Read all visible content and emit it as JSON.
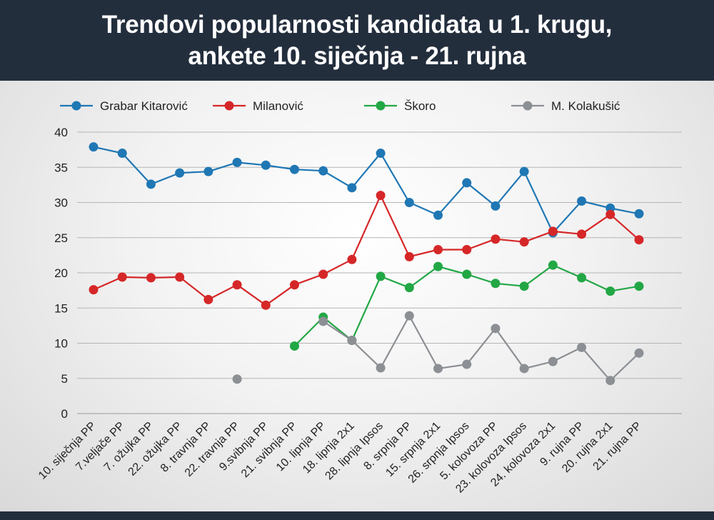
{
  "header": {
    "title_line1": "Trendovi popularnosti kandidata u 1. krugu,",
    "title_line2": "ankete 10. siječnja - 21. rujna"
  },
  "chart_data": {
    "type": "line",
    "title": "Trendovi popularnosti kandidata u 1. krugu, ankete 10. siječnja - 21. rujna",
    "xlabel": "",
    "ylabel": "",
    "ylim": [
      0,
      40
    ],
    "yticks": [
      0,
      5,
      10,
      15,
      20,
      25,
      30,
      35,
      40
    ],
    "grid": true,
    "legend_position": "top",
    "categories": [
      "10. siječnja PP",
      "7.veljače PP",
      "7. ožujka PP",
      "22. ožujka PP",
      "8. travnja PP",
      "22. travnja PP",
      "9.svibnja PP",
      "21. svibnja PP",
      "10. lipnja PP",
      "18. lipnja 2x1",
      "28. lipnja Ipsos",
      "8. srpnja PP",
      "15. srpnja 2x1",
      "26. srpnja Ipsos",
      "5. kolovoza PP",
      "23. kolovoza Ipsos",
      "24. kolovoza 2x1",
      "9. rujna PP",
      "20. rujna 2x1",
      "21. rujna PP"
    ],
    "series": [
      {
        "name": "Grabar Kitarović",
        "color": "#1f77b4",
        "values": [
          37.9,
          37.0,
          32.6,
          34.2,
          34.4,
          35.7,
          35.3,
          34.7,
          34.5,
          32.1,
          37.0,
          30.0,
          28.2,
          32.8,
          29.5,
          34.4,
          25.7,
          30.2,
          29.2,
          28.4
        ]
      },
      {
        "name": "Milanović",
        "color": "#d62728",
        "values": [
          17.6,
          19.4,
          19.3,
          19.4,
          16.2,
          18.3,
          15.4,
          18.3,
          19.8,
          21.9,
          31.0,
          22.3,
          23.3,
          23.3,
          24.8,
          24.4,
          25.9,
          25.5,
          28.3,
          24.7
        ]
      },
      {
        "name": "Škoro",
        "color": "#22a745",
        "values": [
          null,
          null,
          null,
          null,
          null,
          null,
          null,
          9.6,
          13.7,
          10.4,
          19.5,
          17.9,
          20.9,
          19.8,
          18.5,
          18.1,
          21.1,
          19.3,
          17.4,
          18.1
        ]
      },
      {
        "name": "M. Kolakušić",
        "color": "#8c8f94",
        "values": [
          null,
          null,
          null,
          null,
          null,
          4.9,
          null,
          null,
          13.1,
          10.4,
          6.5,
          13.9,
          6.4,
          7.0,
          12.1,
          6.4,
          7.4,
          9.4,
          4.7,
          8.6
        ]
      }
    ]
  }
}
